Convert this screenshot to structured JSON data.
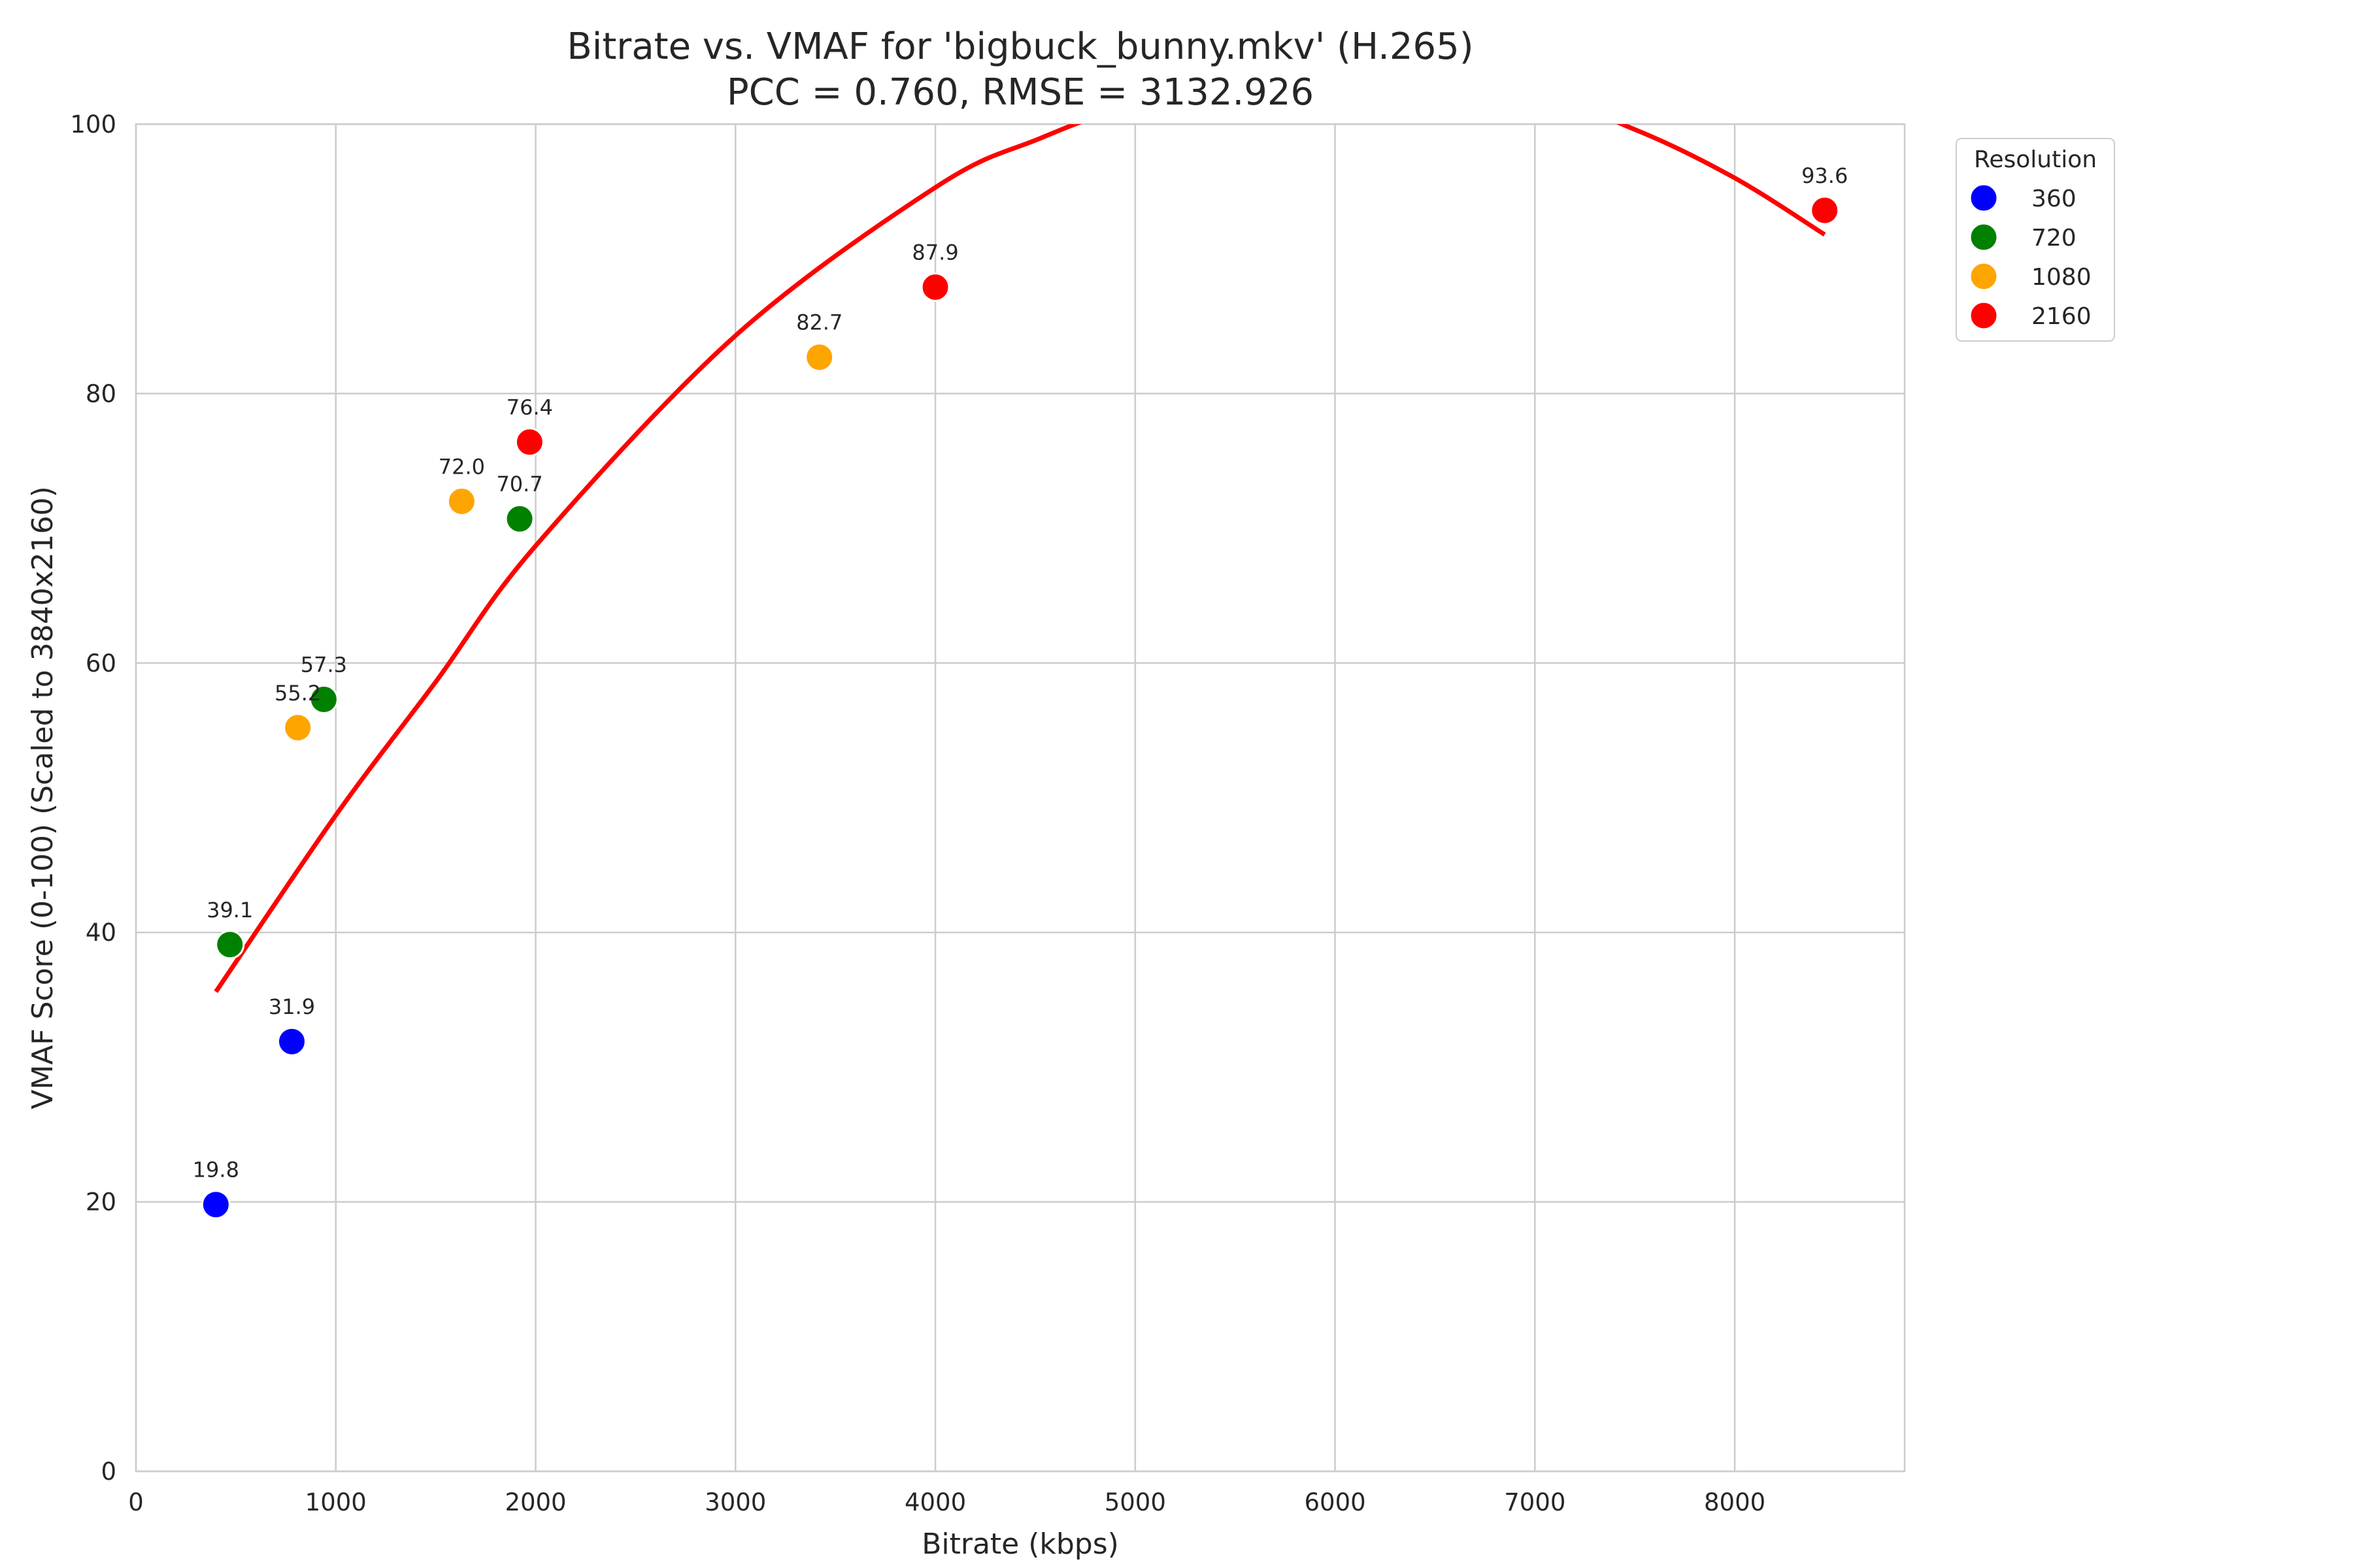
{
  "chart_data": {
    "type": "scatter",
    "title": "Bitrate vs. VMAF for 'bigbuck_bunny.mkv' (H.265)",
    "subtitle": "PCC = 0.760, RMSE = 3132.926",
    "xlabel": "Bitrate (kbps)",
    "ylabel": "VMAF Score (0-100) (Scaled to 3840x2160)",
    "xlim": [
      0,
      8850
    ],
    "ylim": [
      0,
      100
    ],
    "xticks": [
      0,
      1000,
      2000,
      3000,
      4000,
      5000,
      6000,
      7000,
      8000
    ],
    "yticks": [
      0,
      20,
      40,
      60,
      80,
      100
    ],
    "grid": true,
    "legend": {
      "title": "Resolution",
      "placement": "outside-top-right"
    },
    "series": [
      {
        "name": "360",
        "color": "#0000ff",
        "points": [
          {
            "x": 400,
            "y": 19.8,
            "label": "19.8"
          },
          {
            "x": 780,
            "y": 31.9,
            "label": "31.9"
          }
        ]
      },
      {
        "name": "720",
        "color": "#008000",
        "points": [
          {
            "x": 470,
            "y": 39.1,
            "label": "39.1"
          },
          {
            "x": 940,
            "y": 57.3,
            "label": "57.3"
          },
          {
            "x": 1920,
            "y": 70.7,
            "label": "70.7"
          }
        ]
      },
      {
        "name": "1080",
        "color": "#ffa500",
        "points": [
          {
            "x": 810,
            "y": 55.2,
            "label": "55.2"
          },
          {
            "x": 1630,
            "y": 72.0,
            "label": "72.0"
          },
          {
            "x": 3420,
            "y": 82.7,
            "label": "82.7"
          }
        ]
      },
      {
        "name": "2160",
        "color": "#ff0000",
        "points": [
          {
            "x": 1970,
            "y": 76.4,
            "label": "76.4"
          },
          {
            "x": 4000,
            "y": 87.9,
            "label": "87.9"
          },
          {
            "x": 8450,
            "y": 93.6,
            "label": "93.6"
          }
        ]
      }
    ],
    "fit_curve": {
      "color": "#ff0000",
      "points": [
        {
          "x": 400,
          "y": 35.6
        },
        {
          "x": 1000,
          "y": 48.7
        },
        {
          "x": 1500,
          "y": 58.6
        },
        {
          "x": 2000,
          "y": 68.7
        },
        {
          "x": 3000,
          "y": 84.3
        },
        {
          "x": 4000,
          "y": 95.3
        },
        {
          "x": 4500,
          "y": 98.8
        },
        {
          "x": 5000,
          "y": 101.2
        },
        {
          "x": 6000,
          "y": 103.0
        },
        {
          "x": 7000,
          "y": 102.0
        },
        {
          "x": 7500,
          "y": 99.6
        },
        {
          "x": 8000,
          "y": 96.0
        },
        {
          "x": 8450,
          "y": 91.8
        }
      ]
    }
  }
}
